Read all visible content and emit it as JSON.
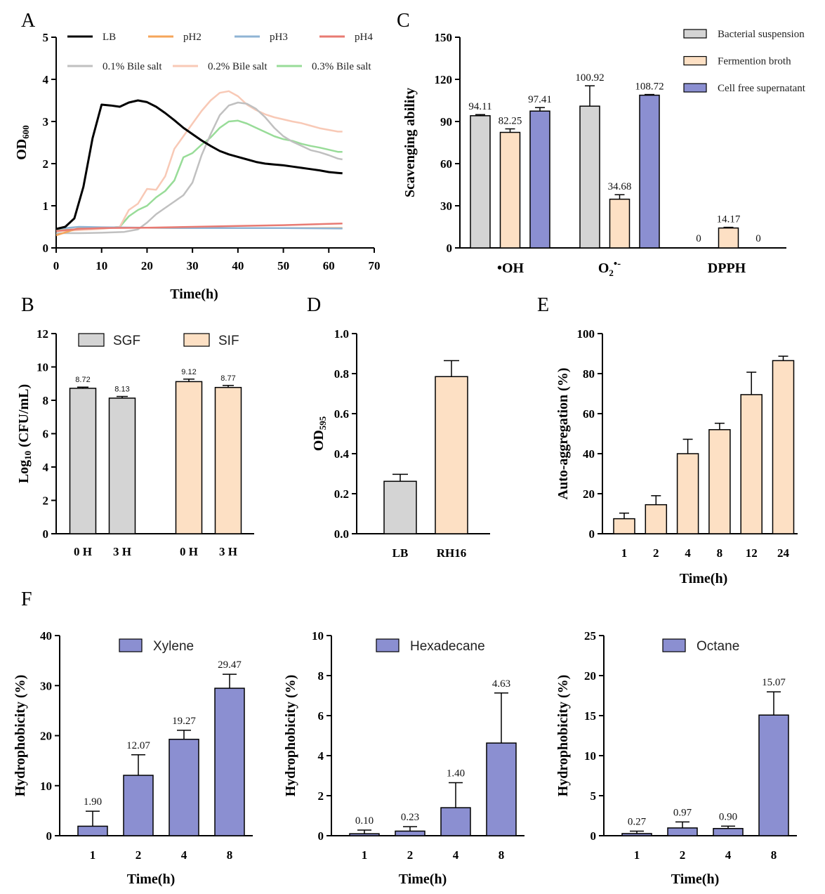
{
  "panel_letters": {
    "A": "A",
    "B": "B",
    "C": "C",
    "D": "D",
    "E": "E",
    "F": "F"
  },
  "colors": {
    "gray_bar": "#d4d4d4",
    "peach_bar": "#fde0c4",
    "purple_bar": "#8b8fd1",
    "LB": "#000000",
    "pH2": "#f5a55a",
    "pH3": "#8fb4d4",
    "pH4": "#e87a72",
    "bile01": "#c0c0c0",
    "bile02": "#f8c9b6",
    "bile03": "#98dc98"
  },
  "chart_data": [
    {
      "id": "A",
      "type": "line",
      "title": "",
      "xlabel": "Time(h)",
      "ylabel_main": "OD",
      "ylabel_sub": "600",
      "xlim": [
        0,
        70
      ],
      "ylim": [
        0,
        5
      ],
      "xticks": [
        "0",
        "10",
        "20",
        "30",
        "40",
        "50",
        "60",
        "70"
      ],
      "yticks": [
        "0",
        "1",
        "2",
        "3",
        "4",
        "5"
      ],
      "series": [
        {
          "name": "LB",
          "color": "#000000",
          "x": [
            0,
            2,
            4,
            6,
            8,
            10,
            12,
            14,
            16,
            18,
            20,
            22,
            24,
            26,
            28,
            30,
            32,
            34,
            36,
            38,
            40,
            42,
            44,
            46,
            48,
            50,
            52,
            54,
            56,
            58,
            60,
            62,
            63
          ],
          "y": [
            0.45,
            0.5,
            0.7,
            1.45,
            2.6,
            3.4,
            3.38,
            3.35,
            3.45,
            3.5,
            3.46,
            3.35,
            3.2,
            3.03,
            2.85,
            2.7,
            2.55,
            2.42,
            2.3,
            2.22,
            2.16,
            2.1,
            2.04,
            2.0,
            1.98,
            1.96,
            1.93,
            1.9,
            1.87,
            1.84,
            1.8,
            1.78,
            1.77
          ]
        },
        {
          "name": "pH2",
          "color": "#f5a55a",
          "x": [
            0,
            5,
            10,
            20,
            30,
            40,
            50,
            63
          ],
          "y": [
            0.3,
            0.47,
            0.48,
            0.48,
            0.47,
            0.47,
            0.47,
            0.47
          ]
        },
        {
          "name": "pH3",
          "color": "#8fb4d4",
          "x": [
            0,
            5,
            10,
            20,
            30,
            40,
            50,
            63
          ],
          "y": [
            0.45,
            0.5,
            0.49,
            0.48,
            0.47,
            0.47,
            0.47,
            0.46
          ]
        },
        {
          "name": "pH4",
          "color": "#e87a72",
          "x": [
            0,
            5,
            10,
            20,
            30,
            40,
            50,
            60,
            63
          ],
          "y": [
            0.4,
            0.45,
            0.47,
            0.48,
            0.5,
            0.52,
            0.54,
            0.57,
            0.58
          ]
        },
        {
          "name": "0.1% Bile salt",
          "color": "#c0c0c0",
          "x": [
            0,
            5,
            10,
            15,
            18,
            20,
            22,
            24,
            26,
            28,
            30,
            32,
            34,
            36,
            38,
            40,
            42,
            44,
            46,
            48,
            50,
            52,
            54,
            56,
            58,
            60,
            62,
            63
          ],
          "y": [
            0.35,
            0.35,
            0.36,
            0.38,
            0.44,
            0.6,
            0.8,
            0.95,
            1.1,
            1.25,
            1.55,
            2.2,
            2.7,
            3.15,
            3.38,
            3.45,
            3.42,
            3.3,
            3.1,
            2.85,
            2.65,
            2.52,
            2.42,
            2.32,
            2.27,
            2.2,
            2.12,
            2.1
          ]
        },
        {
          "name": "0.2% Bile salt",
          "color": "#f8c9b6",
          "x": [
            0,
            5,
            10,
            14,
            16,
            18,
            20,
            22,
            24,
            26,
            28,
            30,
            32,
            34,
            36,
            38,
            40,
            42,
            44,
            46,
            48,
            50,
            52,
            54,
            56,
            58,
            60,
            62,
            63
          ],
          "y": [
            0.4,
            0.42,
            0.45,
            0.5,
            0.9,
            1.05,
            1.4,
            1.38,
            1.7,
            2.35,
            2.65,
            2.95,
            3.25,
            3.5,
            3.68,
            3.72,
            3.6,
            3.4,
            3.27,
            3.17,
            3.1,
            3.05,
            3.0,
            2.96,
            2.9,
            2.84,
            2.8,
            2.76,
            2.76
          ]
        },
        {
          "name": "0.3% Bile salt",
          "color": "#98dc98",
          "x": [
            0,
            5,
            10,
            14,
            16,
            18,
            20,
            22,
            24,
            26,
            28,
            30,
            32,
            34,
            36,
            38,
            40,
            42,
            44,
            46,
            48,
            50,
            52,
            54,
            56,
            58,
            60,
            62,
            63
          ],
          "y": [
            0.42,
            0.44,
            0.46,
            0.5,
            0.75,
            0.9,
            1.0,
            1.2,
            1.35,
            1.6,
            2.15,
            2.25,
            2.45,
            2.62,
            2.85,
            3.0,
            3.02,
            2.95,
            2.85,
            2.75,
            2.65,
            2.58,
            2.54,
            2.47,
            2.42,
            2.38,
            2.33,
            2.28,
            2.28
          ]
        }
      ]
    },
    {
      "id": "B",
      "type": "bar",
      "xlabel": "",
      "ylabel_pre": "Log",
      "ylabel_sub": "10",
      "ylabel_post": " (CFU/mL)",
      "ylim": [
        0,
        12
      ],
      "yticks": [
        "0",
        "2",
        "4",
        "6",
        "8",
        "10",
        "12"
      ],
      "legend": [
        "SGF",
        "SIF"
      ],
      "categories": [
        "0 H",
        "3 H",
        "0 H",
        "3 H"
      ],
      "values": [
        8.72,
        8.13,
        9.12,
        8.77
      ],
      "errors": [
        0.07,
        0.1,
        0.15,
        0.12
      ],
      "labels": [
        "8.72",
        "8.13",
        "9.12",
        "8.77"
      ],
      "groups": [
        "SGF",
        "SGF",
        "SIF",
        "SIF"
      ]
    },
    {
      "id": "C",
      "type": "bar",
      "xlabel": "",
      "ylabel": "Scavenging ability",
      "ylim": [
        0,
        150
      ],
      "yticks": [
        "0",
        "30",
        "60",
        "90",
        "120",
        "150"
      ],
      "legend": [
        "Bacterial suspension",
        "Fermention broth",
        "Cell free supernatant"
      ],
      "categories": [
        "•OH",
        "O2•-",
        "DPPH"
      ],
      "category_parts": [
        {
          "main": "•OH",
          "sub": "",
          "sup": ""
        },
        {
          "main": "O",
          "sub": "2",
          "sup": "•-"
        },
        {
          "main": "DPPH",
          "sub": "",
          "sup": ""
        }
      ],
      "series": [
        {
          "name": "Bacterial suspension",
          "values": [
            94.11,
            100.92,
            0
          ],
          "errors": [
            0.8,
            14.5,
            0
          ],
          "labels": [
            "94.11",
            "100.92",
            "0"
          ]
        },
        {
          "name": "Fermention broth",
          "values": [
            82.25,
            34.68,
            14.17
          ],
          "errors": [
            2.5,
            3.2,
            0.5
          ],
          "labels": [
            "82.25",
            "34.68",
            "14.17"
          ]
        },
        {
          "name": "Cell free supernatant",
          "values": [
            97.41,
            108.72,
            0
          ],
          "errors": [
            2.5,
            0.5,
            0
          ],
          "labels": [
            "97.41",
            "108.72",
            "0"
          ]
        }
      ]
    },
    {
      "id": "D",
      "type": "bar",
      "xlabel": "",
      "ylabel_main": "OD",
      "ylabel_sub": "595",
      "ylim": [
        0,
        1.0
      ],
      "yticks": [
        "0.0",
        "0.2",
        "0.4",
        "0.6",
        "0.8",
        "1.0"
      ],
      "categories": [
        "LB",
        "RH16"
      ],
      "values": [
        0.262,
        0.785
      ],
      "errors": [
        0.035,
        0.08
      ]
    },
    {
      "id": "E",
      "type": "bar",
      "xlabel": "Time(h)",
      "ylabel": "Auto-aggregation (%)",
      "ylim": [
        0,
        100
      ],
      "yticks": [
        "0",
        "20",
        "40",
        "60",
        "80",
        "100"
      ],
      "categories": [
        "1",
        "2",
        "4",
        "8",
        "12",
        "24"
      ],
      "values": [
        7.5,
        14.5,
        40.0,
        52.0,
        69.5,
        86.5
      ],
      "errors": [
        2.8,
        4.5,
        7.2,
        3.2,
        11.2,
        2.2
      ]
    },
    {
      "id": "F1",
      "type": "bar",
      "xlabel": "Time(h)",
      "ylabel": "Hydrophobicity (%)",
      "ylim": [
        0,
        40
      ],
      "yticks": [
        "0",
        "10",
        "20",
        "30",
        "40"
      ],
      "legend": "Xylene",
      "categories": [
        "1",
        "2",
        "4",
        "8"
      ],
      "values": [
        1.9,
        12.07,
        19.27,
        29.47
      ],
      "errors": [
        3.0,
        4.1,
        1.8,
        2.8
      ],
      "labels": [
        "1.90",
        "12.07",
        "19.27",
        "29.47"
      ]
    },
    {
      "id": "F2",
      "type": "bar",
      "xlabel": "Time(h)",
      "ylabel": "Hydrophobicity (%)",
      "ylim": [
        0,
        10
      ],
      "yticks": [
        "0",
        "2",
        "4",
        "6",
        "8",
        "10"
      ],
      "legend": "Hexadecane",
      "categories": [
        "1",
        "2",
        "4",
        "8"
      ],
      "values": [
        0.1,
        0.23,
        1.4,
        4.63
      ],
      "errors": [
        0.18,
        0.22,
        1.25,
        2.5
      ],
      "labels": [
        "0.10",
        "0.23",
        "1.40",
        "4.63"
      ]
    },
    {
      "id": "F3",
      "type": "bar",
      "xlabel": "Time(h)",
      "ylabel": "Hydrophobicity (%)",
      "ylim": [
        0,
        25
      ],
      "yticks": [
        "0",
        "5",
        "10",
        "15",
        "20",
        "25"
      ],
      "legend": "Octane",
      "categories": [
        "1",
        "2",
        "4",
        "8"
      ],
      "values": [
        0.27,
        0.97,
        0.9,
        15.07
      ],
      "errors": [
        0.3,
        0.75,
        0.3,
        2.9
      ],
      "labels": [
        "0.27",
        "0.97",
        "0.90",
        "15.07"
      ]
    }
  ]
}
